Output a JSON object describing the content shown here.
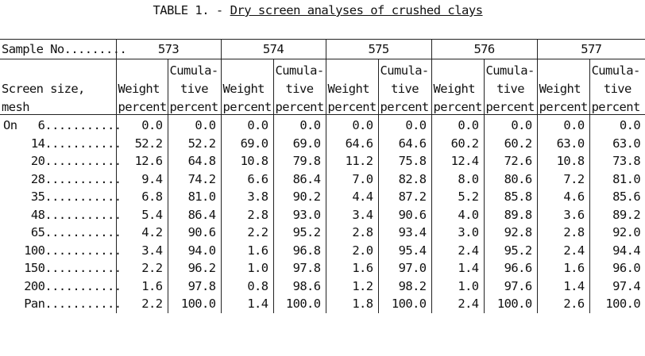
{
  "title": {
    "prefix": "TABLE 1. - ",
    "text": "Dry screen analyses of crushed clays"
  },
  "header": {
    "sample_label": "Sample No.........",
    "samples": [
      "573",
      "574",
      "575",
      "576",
      "577"
    ],
    "screen_label_1": "Screen size,",
    "screen_label_2": "mesh",
    "weight_1": "Weight",
    "weight_2": "percent",
    "cum_1": "Cumula-",
    "cum_2": "tive",
    "cum_3": "percent",
    "cum_3_last": "percent"
  },
  "rows": [
    {
      "label": "On   6...........",
      "values": [
        "0.0",
        "0.0",
        "0.0",
        "0.0",
        "0.0",
        "0.0",
        "0.0",
        "0.0",
        "0.0",
        "0.0"
      ]
    },
    {
      "label": "    14...........",
      "values": [
        "52.2",
        "52.2",
        "69.0",
        "69.0",
        "64.6",
        "64.6",
        "60.2",
        "60.2",
        "63.0",
        "63.0"
      ]
    },
    {
      "label": "    20...........",
      "values": [
        "12.6",
        "64.8",
        "10.8",
        "79.8",
        "11.2",
        "75.8",
        "12.4",
        "72.6",
        "10.8",
        "73.8"
      ]
    },
    {
      "label": "    28...........",
      "values": [
        "9.4",
        "74.2",
        "6.6",
        "86.4",
        "7.0",
        "82.8",
        "8.0",
        "80.6",
        "7.2",
        "81.0"
      ]
    },
    {
      "label": "    35...........",
      "values": [
        "6.8",
        "81.0",
        "3.8",
        "90.2",
        "4.4",
        "87.2",
        "5.2",
        "85.8",
        "4.6",
        "85.6"
      ]
    },
    {
      "label": "    48...........",
      "values": [
        "5.4",
        "86.4",
        "2.8",
        "93.0",
        "3.4",
        "90.6",
        "4.0",
        "89.8",
        "3.6",
        "89.2"
      ]
    },
    {
      "label": "    65...........",
      "values": [
        "4.2",
        "90.6",
        "2.2",
        "95.2",
        "2.8",
        "93.4",
        "3.0",
        "92.8",
        "2.8",
        "92.0"
      ]
    },
    {
      "label": "   100...........",
      "values": [
        "3.4",
        "94.0",
        "1.6",
        "96.8",
        "2.0",
        "95.4",
        "2.4",
        "95.2",
        "2.4",
        "94.4"
      ]
    },
    {
      "label": "   150...........",
      "values": [
        "2.2",
        "96.2",
        "1.0",
        "97.8",
        "1.6",
        "97.0",
        "1.4",
        "96.6",
        "1.6",
        "96.0"
      ]
    },
    {
      "label": "   200...........",
      "values": [
        "1.6",
        "97.8",
        "0.8",
        "98.6",
        "1.2",
        "98.2",
        "1.0",
        "97.6",
        "1.4",
        "97.4"
      ]
    },
    {
      "label": "   Pan...........",
      "values": [
        "2.2",
        "100.0",
        "1.4",
        "100.0",
        "1.8",
        "100.0",
        "2.4",
        "100.0",
        "2.6",
        "100.0"
      ]
    }
  ]
}
